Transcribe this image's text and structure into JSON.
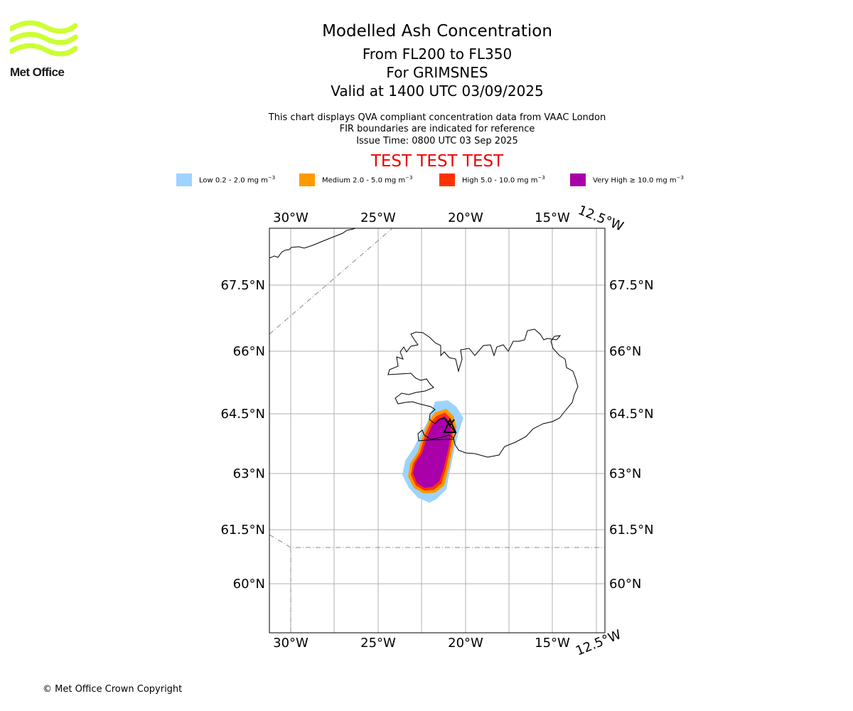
{
  "logo": {
    "text": "Met Office",
    "color": "#ccff33"
  },
  "title": {
    "line1": "Modelled Ash Concentration",
    "line2": "From FL200 to FL350",
    "line3": "For GRIMSNES",
    "line4": "Valid at 1400 UTC 03/09/2025"
  },
  "notes": {
    "line1": "This chart displays QVA compliant concentration data from VAAC London",
    "line2": "FIR boundaries are indicated for reference",
    "line3": "Issue Time: 0800 UTC 03 Sep 2025"
  },
  "banner": {
    "text": "TEST TEST TEST",
    "color": "#ee0000"
  },
  "legend": [
    {
      "label": "Low 0.2 - 2.0 mg m",
      "unit_exp": "−3",
      "color": "#9dd3ff"
    },
    {
      "label": "Medium 2.0 - 5.0 mg m",
      "unit_exp": "−3",
      "color": "#ff9900"
    },
    {
      "label": "High 5.0 - 10.0 mg m",
      "unit_exp": "−3",
      "color": "#ff3300"
    },
    {
      "label": "Very High ≥ 10.0 mg m",
      "unit_exp": "−3",
      "color": "#aa00aa"
    }
  ],
  "map": {
    "lon_ticks": [
      "30°W",
      "25°W",
      "20°W",
      "15°W",
      "12.5°W"
    ],
    "lat_ticks": [
      "67.5°N",
      "66°N",
      "64.5°N",
      "63°N",
      "61.5°N",
      "60°N"
    ],
    "volcano_symbol": "volcano-icon"
  },
  "copyright": "© Met Office Crown Copyright"
}
